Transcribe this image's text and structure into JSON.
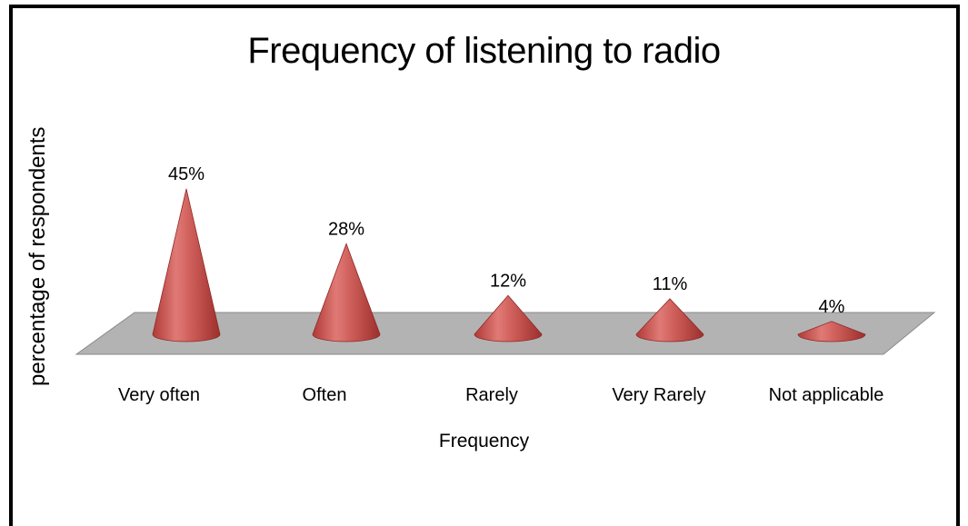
{
  "chart_data": {
    "type": "bar",
    "title": "Frequency of listening to radio",
    "xlabel": "Frequency",
    "ylabel": "percentage of respondents",
    "categories": [
      "Very often",
      "Often",
      "Rarely",
      "Very Rarely",
      "Not applicable"
    ],
    "values": [
      45,
      28,
      12,
      11,
      4
    ],
    "data_labels": [
      "45%",
      "28%",
      "12%",
      "11%",
      "4%"
    ],
    "ylim": [
      0,
      50
    ],
    "grid": false,
    "legend": "none",
    "mark_shape": "cone",
    "colors": {
      "cone": "#c0504d",
      "floor": "#b3b3b3"
    }
  }
}
